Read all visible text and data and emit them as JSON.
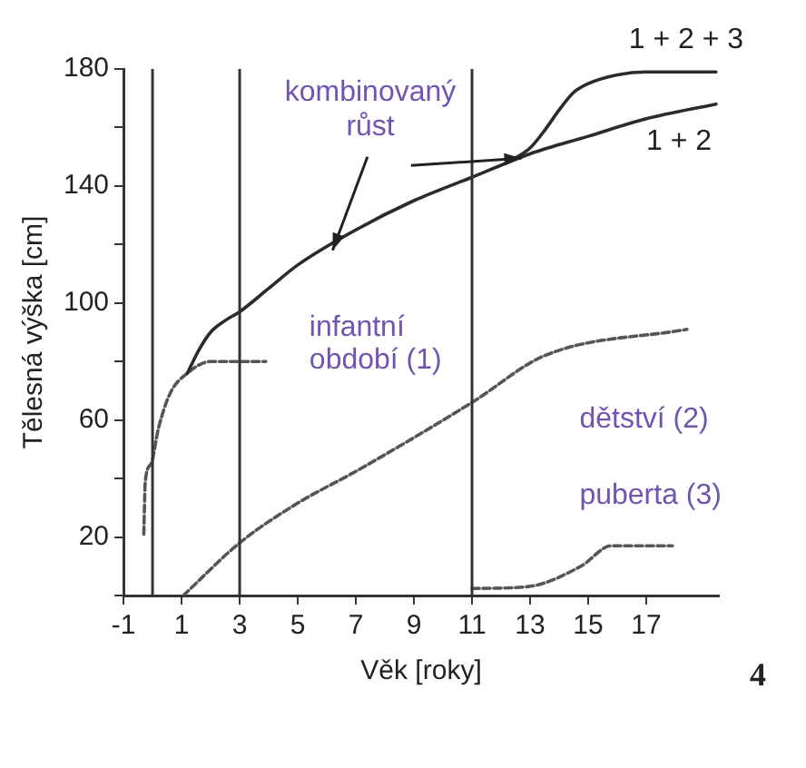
{
  "chart_data": {
    "type": "line",
    "xlabel": "Věk [roky]",
    "ylabel": "Tělesná výška [cm]",
    "xlim": [
      -1,
      19.5
    ],
    "xticks": [
      -1,
      1,
      3,
      5,
      7,
      9,
      11,
      13,
      15,
      17
    ],
    "ylim": [
      0,
      180
    ],
    "yticks": [
      {
        "value": 0,
        "label": null
      },
      20,
      {
        "value": 40,
        "label": null
      },
      60,
      {
        "value": 80,
        "label": null
      },
      100,
      {
        "value": 120,
        "label": null
      },
      140,
      {
        "value": 160,
        "label": null
      },
      180
    ],
    "grid": false,
    "legend": false,
    "marker": "none",
    "annotations": [
      {
        "text": "kombinovaný růst",
        "x": 6.2,
        "y": 118
      },
      "4"
    ],
    "ref_lines": [
      {
        "axis": "x",
        "value": 0,
        "color": "#333333"
      },
      {
        "axis": "x",
        "value": 3,
        "color": "#333333"
      },
      {
        "axis": "x",
        "value": 11,
        "color": "#333333"
      }
    ],
    "series": [
      {
        "name": "1 + 2",
        "color": "#2b2b2b",
        "line_style": "solid",
        "x": [
          1.2,
          1.6,
          2,
          2.5,
          3,
          4,
          5,
          7,
          9,
          11,
          13,
          15,
          17,
          19.4
        ],
        "values": [
          76,
          84,
          90,
          94,
          97,
          105,
          113,
          125,
          135,
          143,
          151,
          157,
          163,
          168
        ]
      },
      {
        "name": "1 + 2 + 3",
        "color": "#2b2b2b",
        "line_style": "solid",
        "x": [
          12.4,
          13,
          13.5,
          14,
          14.5,
          15,
          16,
          17,
          19.4
        ],
        "values": [
          149,
          153,
          159,
          166,
          172,
          175,
          178,
          179,
          179
        ]
      },
      {
        "name": "infantní období (1)",
        "color": "#555555",
        "line_style": "dashed",
        "x": [
          -0.3,
          -0.25,
          -0.05,
          0.2,
          0.6,
          1.2,
          2,
          3.9
        ],
        "values": [
          21,
          39,
          45,
          57,
          69,
          76,
          80,
          80
        ]
      },
      {
        "name": "dětství (2)",
        "color": "#555555",
        "line_style": "dashed",
        "x": [
          1.06,
          3,
          4.9,
          7.1,
          11,
          13.5,
          18.4
        ],
        "values": [
          0,
          18,
          31,
          43,
          66,
          82,
          91
        ]
      },
      {
        "name": "puberta (3)",
        "color": "#555555",
        "line_style": "dashed",
        "x": [
          11,
          12.9,
          14.75,
          15.8,
          17.9
        ],
        "values": [
          2.4,
          3,
          10,
          17,
          17
        ]
      }
    ]
  }
}
